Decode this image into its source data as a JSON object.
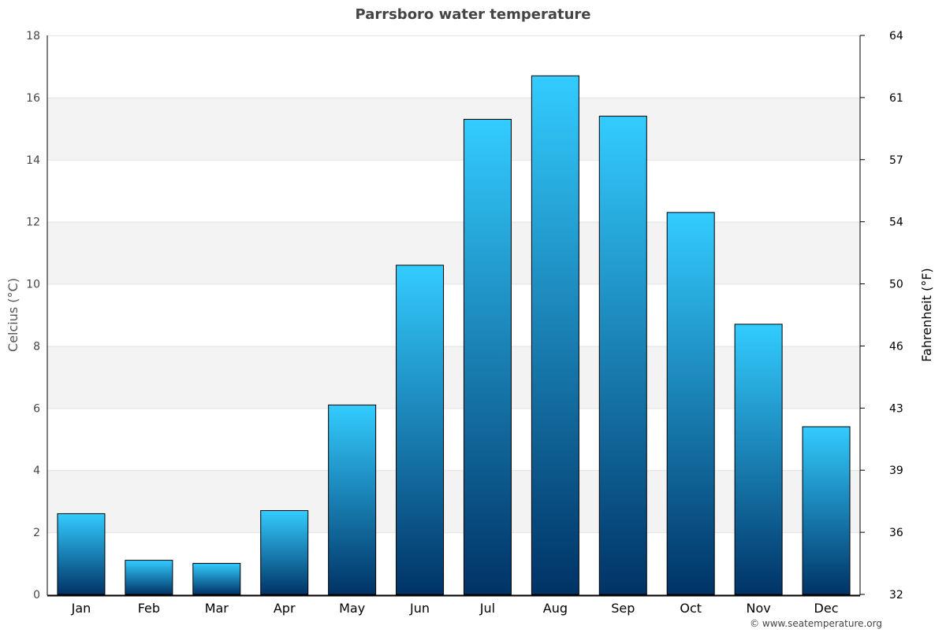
{
  "chart_data": {
    "type": "bar",
    "title": "Parrsboro water temperature",
    "categories": [
      "Jan",
      "Feb",
      "Mar",
      "Apr",
      "May",
      "Jun",
      "Jul",
      "Aug",
      "Sep",
      "Oct",
      "Nov",
      "Dec"
    ],
    "series": [
      {
        "name": "Water temperature (°C)",
        "values": [
          2.6,
          1.1,
          1.0,
          2.7,
          6.1,
          10.6,
          15.3,
          16.7,
          15.4,
          12.3,
          8.7,
          5.4
        ]
      }
    ],
    "ylabel": "Celcius (°C)",
    "ylabel_right": "Fahrenheit (°F)",
    "ylim": [
      0,
      18
    ],
    "yticks": [
      "0",
      "2",
      "4",
      "6",
      "8",
      "10",
      "12",
      "14",
      "16",
      "18"
    ],
    "yticks_right": [
      "32",
      "36",
      "39",
      "43",
      "46",
      "50",
      "54",
      "57",
      "61",
      "64"
    ],
    "grid": true,
    "colors": {
      "bar_top": "#33ccff",
      "bar_bottom": "#003366",
      "band": "#f3f3f3"
    }
  },
  "footer": {
    "credit": "© www.seatemperature.org"
  }
}
